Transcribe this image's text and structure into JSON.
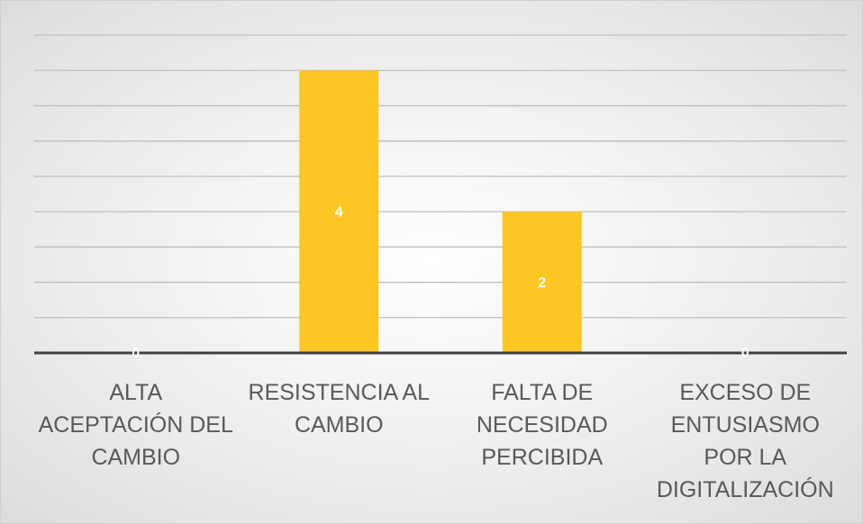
{
  "chart_data": {
    "type": "bar",
    "categories": [
      "ALTA ACEPTACIÓN DEL CAMBIO",
      "RESISTENCIA AL CAMBIO",
      "FALTA DE NECESIDAD PERCIBIDA",
      "EXCESO DE ENTUSIASMO POR LA DIGITALIZACIÓN"
    ],
    "values": [
      0,
      4,
      2,
      0
    ],
    "color": "#fcc624",
    "ylim": [
      0,
      4.5
    ],
    "yticks": [
      0,
      0.5,
      1,
      1.5,
      2,
      2.5,
      3,
      3.5,
      4,
      4.5
    ],
    "grid": true
  }
}
